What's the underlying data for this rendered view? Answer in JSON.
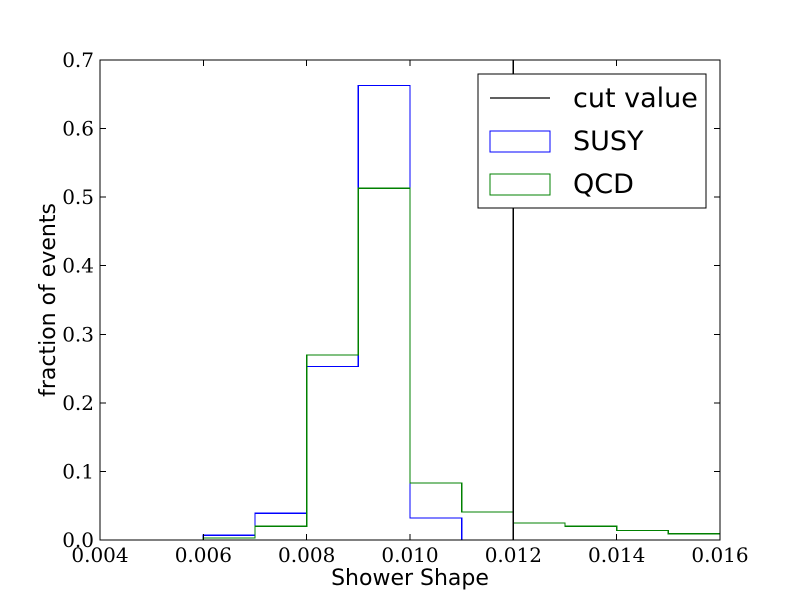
{
  "chart_data": {
    "type": "histogram",
    "title": "",
    "xlabel": "Shower Shape",
    "ylabel": "fraction of events",
    "xlim": [
      0.004,
      0.016
    ],
    "ylim": [
      0.0,
      0.7
    ],
    "grid": false,
    "x_ticks": [
      0.004,
      0.006,
      0.008,
      0.01,
      0.012,
      0.014,
      0.016
    ],
    "x_tick_labels": [
      "0.004",
      "0.006",
      "0.008",
      "0.010",
      "0.012",
      "0.014",
      "0.016"
    ],
    "y_ticks": [
      0.0,
      0.1,
      0.2,
      0.3,
      0.4,
      0.5,
      0.6,
      0.7
    ],
    "y_tick_labels": [
      "0.0",
      "0.1",
      "0.2",
      "0.3",
      "0.4",
      "0.5",
      "0.6",
      "0.7"
    ],
    "bin_edges": [
      0.004,
      0.005,
      0.006,
      0.007,
      0.008,
      0.009,
      0.01,
      0.011,
      0.012,
      0.013,
      0.014,
      0.015,
      0.016
    ],
    "series": [
      {
        "name": "SUSY",
        "color": "#0000ff",
        "values": [
          0.0,
          0.0,
          0.007,
          0.039,
          0.253,
          0.663,
          0.032,
          0.0,
          0.0,
          0.0,
          0.0,
          0.0
        ]
      },
      {
        "name": "QCD",
        "color": "#008000",
        "values": [
          0.0,
          0.0,
          0.003,
          0.02,
          0.27,
          0.513,
          0.083,
          0.041,
          0.025,
          0.02,
          0.014,
          0.009
        ]
      }
    ],
    "reference_lines": [
      {
        "name": "cut value",
        "x": 0.012,
        "color": "#000000"
      }
    ],
    "legend": {
      "position": "upper-right",
      "entries": [
        {
          "label": "cut value",
          "kind": "line",
          "color": "#000000"
        },
        {
          "label": "SUSY",
          "kind": "patch",
          "color": "#0000ff"
        },
        {
          "label": "QCD",
          "kind": "patch",
          "color": "#008000"
        }
      ]
    }
  }
}
